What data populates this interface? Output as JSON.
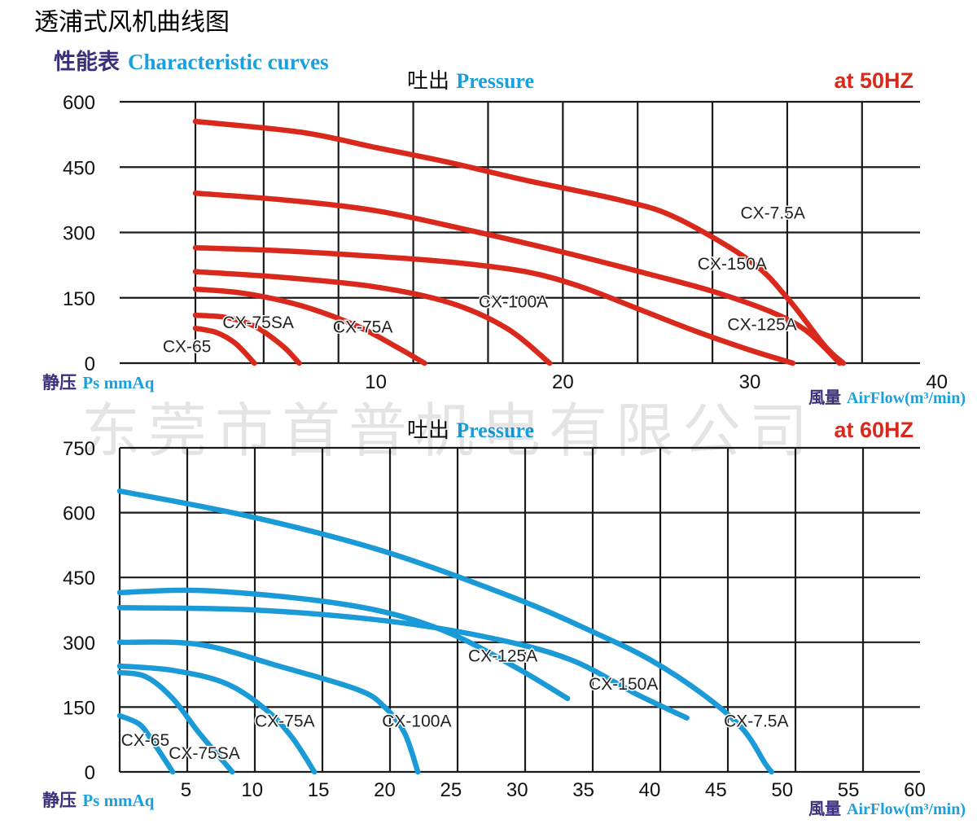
{
  "page_title": "透浦式风机曲线图",
  "subtitle_cn": "性能表",
  "subtitle_en": "Characteristic curves",
  "watermark": "东莞市首普机电有限公司",
  "chart_data": [
    {
      "type": "line",
      "name": "50Hz",
      "title_cn": "吐出",
      "title_en": "Pressure",
      "freq_label": "at 50HZ",
      "ylabel_cn": "静压",
      "ylabel_en": "Ps mmAq",
      "xlabel_cn": "風量",
      "xlabel_en": "AirFlow(m³/min)",
      "color": "#d9291c",
      "xlim": [
        -3.7,
        39.1
      ],
      "ylim": [
        0,
        600
      ],
      "x_grid": [
        0.35,
        4,
        8,
        12,
        16,
        20,
        24,
        28,
        32,
        36
      ],
      "y_grid": [
        0,
        150,
        300,
        450,
        600
      ],
      "x_ticks": [
        10,
        20,
        30,
        40
      ],
      "x_tick_labels": [
        "10",
        "20",
        "30",
        "40"
      ],
      "y_ticks": [
        0,
        150,
        300,
        450,
        600
      ],
      "y_tick_labels": [
        "0",
        "150",
        "300",
        "450",
        "600"
      ],
      "series": [
        {
          "name": "CX-7.5A",
          "label_at": [
            29.5,
            332
          ],
          "points": [
            [
              0.35,
              555
            ],
            [
              6,
              530
            ],
            [
              10,
              495
            ],
            [
              14,
              460
            ],
            [
              18,
              420
            ],
            [
              23,
              375
            ],
            [
              26,
              335
            ],
            [
              30,
              235
            ],
            [
              32,
              150
            ],
            [
              34,
              40
            ],
            [
              35,
              0
            ]
          ]
        },
        {
          "name": "CX-150A",
          "label_at": [
            27.2,
            215
          ],
          "points": [
            [
              0.35,
              390
            ],
            [
              5,
              375
            ],
            [
              10,
              350
            ],
            [
              15,
              305
            ],
            [
              20,
              255
            ],
            [
              25,
              200
            ],
            [
              28,
              165
            ],
            [
              31,
              120
            ],
            [
              33,
              75
            ],
            [
              34.8,
              0
            ]
          ]
        },
        {
          "name": "CX-125A",
          "label_at": [
            28.8,
            76
          ],
          "points": [
            [
              0.35,
              265
            ],
            [
              5,
              258
            ],
            [
              10,
              245
            ],
            [
              14,
              232
            ],
            [
              18,
              210
            ],
            [
              21,
              175
            ],
            [
              24,
              125
            ],
            [
              27,
              75
            ],
            [
              30,
              30
            ],
            [
              32.3,
              0
            ]
          ]
        },
        {
          "name": "CX-100A",
          "label_at": [
            15.5,
            128
          ],
          "points": [
            [
              0.35,
              210
            ],
            [
              5,
              197
            ],
            [
              10,
              175
            ],
            [
              14,
              138
            ],
            [
              17,
              80
            ],
            [
              19.3,
              0
            ]
          ]
        },
        {
          "name": "CX-75A",
          "label_at": [
            7.7,
            70
          ],
          "points": [
            [
              0.35,
              170
            ],
            [
              3,
              160
            ],
            [
              6,
              132
            ],
            [
              9,
              85
            ],
            [
              11.2,
              35
            ],
            [
              12.6,
              0
            ]
          ]
        },
        {
          "name": "CX-75SA",
          "label_at": [
            1.8,
            80
          ],
          "points": [
            [
              0.35,
              110
            ],
            [
              2,
              105
            ],
            [
              3.5,
              85
            ],
            [
              5,
              40
            ],
            [
              5.9,
              0
            ]
          ]
        },
        {
          "name": "CX-65",
          "label_at": [
            -1.4,
            25
          ],
          "points": [
            [
              0.35,
              80
            ],
            [
              1.5,
              70
            ],
            [
              2.5,
              45
            ],
            [
              3.5,
              0
            ]
          ]
        }
      ]
    },
    {
      "type": "line",
      "name": "60Hz",
      "title_cn": "吐出",
      "title_en": "Pressure",
      "freq_label": "at 60HZ",
      "ylabel_cn": "静压",
      "ylabel_en": "Ps mmAq",
      "xlabel_cn": "風量",
      "xlabel_en": "AirFlow(m³/min)",
      "color": "#1a9ad6",
      "xlim": [
        0,
        60.4
      ],
      "ylim": [
        0,
        750
      ],
      "x_grid": [
        0,
        5.1,
        10.2,
        15.3,
        20.4,
        25.5,
        30.6,
        35.7,
        40.8,
        45.9,
        51,
        56.1
      ],
      "y_grid": [
        0,
        150,
        300,
        450,
        600,
        750
      ],
      "x_ticks": [
        5,
        10,
        15,
        20,
        25,
        30,
        35,
        40,
        45,
        50,
        55,
        60
      ],
      "x_tick_labels": [
        "5",
        "10",
        "15",
        "20",
        "25",
        "30",
        "35",
        "40",
        "45",
        "50",
        "55",
        "60"
      ],
      "y_ticks": [
        0,
        150,
        300,
        450,
        600,
        750
      ],
      "y_tick_labels": [
        "0",
        "150",
        "300",
        "450",
        "600",
        "750"
      ],
      "series": [
        {
          "name": "CX-7.5A",
          "label_at": [
            45.6,
            105
          ],
          "points": [
            [
              0,
              650
            ],
            [
              10,
              590
            ],
            [
              20,
              510
            ],
            [
              30,
              400
            ],
            [
              36,
              320
            ],
            [
              40,
              260
            ],
            [
              44,
              180
            ],
            [
              47,
              100
            ],
            [
              48.7,
              20
            ],
            [
              49.2,
              0
            ]
          ]
        },
        {
          "name": "CX-150A",
          "label_at": [
            35.4,
            190
          ],
          "points": [
            [
              0,
              380
            ],
            [
              10,
              375
            ],
            [
              20,
              350
            ],
            [
              28,
              310
            ],
            [
              34,
              260
            ],
            [
              39,
              180
            ],
            [
              42.8,
              125
            ]
          ]
        },
        {
          "name": "CX-125A",
          "label_at": [
            26.3,
            255
          ],
          "points": [
            [
              0,
              415
            ],
            [
              6,
              420
            ],
            [
              14,
              400
            ],
            [
              20,
              370
            ],
            [
              25,
              320
            ],
            [
              30,
              240
            ],
            [
              33.8,
              170
            ]
          ]
        },
        {
          "name": "CX-100A",
          "label_at": [
            19.8,
            105
          ],
          "points": [
            [
              0,
              300
            ],
            [
              6,
              295
            ],
            [
              12,
              245
            ],
            [
              18,
              190
            ],
            [
              20,
              150
            ],
            [
              21.5,
              90
            ],
            [
              22.5,
              0
            ]
          ]
        },
        {
          "name": "CX-75A",
          "label_at": [
            10.2,
            105
          ],
          "points": [
            [
              0,
              245
            ],
            [
              4,
              235
            ],
            [
              8,
              205
            ],
            [
              11,
              145
            ],
            [
              13,
              80
            ],
            [
              14.7,
              0
            ]
          ]
        },
        {
          "name": "CX-75SA",
          "label_at": [
            3.7,
            30
          ],
          "points": [
            [
              0,
              230
            ],
            [
              2,
              220
            ],
            [
              4,
              170
            ],
            [
              6,
              90
            ],
            [
              8.5,
              0
            ]
          ]
        },
        {
          "name": "CX-65",
          "label_at": [
            0.1,
            60
          ],
          "points": [
            [
              0,
              130
            ],
            [
              1.5,
              110
            ],
            [
              2.5,
              70
            ],
            [
              4,
              0
            ]
          ]
        }
      ]
    }
  ]
}
